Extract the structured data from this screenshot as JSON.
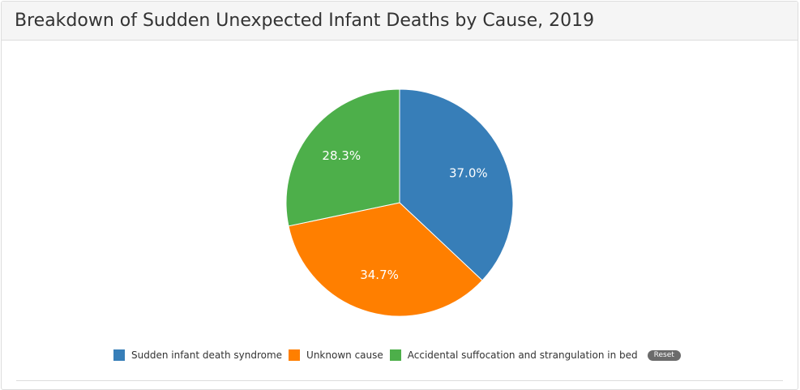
{
  "panel": {
    "title": "Breakdown of Sudden Unexpected Infant Deaths by Cause, 2019"
  },
  "chart_data": {
    "type": "pie",
    "title": "Breakdown of Sudden Unexpected Infant Deaths by Cause, 2019",
    "categories": [
      "Sudden infant death syndrome",
      "Unknown cause",
      "Accidental suffocation and strangulation in bed"
    ],
    "values": [
      37.0,
      34.7,
      28.3
    ],
    "value_labels": [
      "37.0%",
      "34.7%",
      "28.3%"
    ],
    "colors": [
      "#377eb8",
      "#ff7f00",
      "#4daf4a"
    ],
    "legend_position": "bottom"
  },
  "legend": {
    "items": [
      {
        "label": "Sudden infant death syndrome",
        "color": "#377eb8"
      },
      {
        "label": "Unknown cause",
        "color": "#ff7f00"
      },
      {
        "label": "Accidental suffocation and strangulation in bed",
        "color": "#4daf4a"
      }
    ],
    "reset_label": "Reset"
  }
}
